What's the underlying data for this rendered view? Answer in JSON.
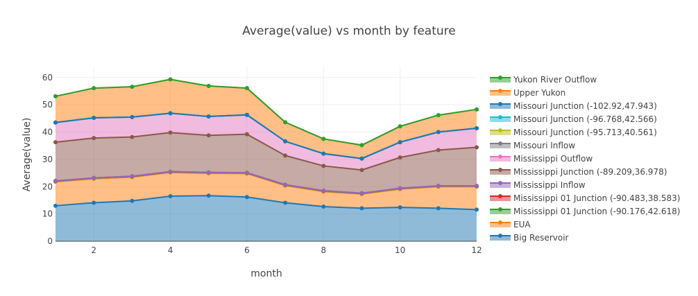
{
  "chart_data": {
    "type": "area",
    "title": "Average(value) vs month by feature",
    "xlabel": "month",
    "ylabel": "Average(value)",
    "x": [
      1,
      2,
      3,
      4,
      5,
      6,
      7,
      8,
      9,
      10,
      11,
      12
    ],
    "xticks": [
      "2",
      "4",
      "6",
      "8",
      "10",
      "12"
    ],
    "yticks": [
      "0",
      "10",
      "20",
      "30",
      "40",
      "50",
      "60"
    ],
    "xlim": [
      1,
      12
    ],
    "ylim": [
      0,
      64
    ],
    "stacked": true,
    "grid": true,
    "legend_position": "right",
    "series": [
      {
        "name": "Big Reservoir",
        "color": "#1f77b4",
        "values": [
          13.0,
          14.1,
          14.8,
          16.5,
          16.7,
          16.2,
          14.1,
          12.7,
          12.1,
          12.4,
          12.1,
          11.6
        ]
      },
      {
        "name": "EUA",
        "color": "#ff7f0e",
        "values": [
          8.8,
          8.8,
          8.7,
          8.7,
          8.2,
          8.6,
          6.3,
          5.5,
          5.2,
          6.7,
          7.9,
          8.4
        ]
      },
      {
        "name": "Mississippi 01 Junction (-90.176,42.618)",
        "color": "#2ca02c",
        "values": [
          0.2,
          0.2,
          0.2,
          0.2,
          0.2,
          0.2,
          0.2,
          0.2,
          0.2,
          0.2,
          0.2,
          0.2
        ]
      },
      {
        "name": "Mississippi 01 Junction (-90.483,38.583)",
        "color": "#d62728",
        "values": [
          0.1,
          0.1,
          0.1,
          0.1,
          0.1,
          0.1,
          0.1,
          0.1,
          0.1,
          0.1,
          0.1,
          0.1
        ]
      },
      {
        "name": "Mississippi Inflow",
        "color": "#9467bd",
        "values": [
          0.0,
          0.0,
          0.0,
          0.0,
          0.0,
          0.0,
          0.0,
          0.0,
          0.0,
          0.0,
          0.0,
          0.0
        ]
      },
      {
        "name": "Mississippi Junction (-89.209,36.978)",
        "color": "#8c564b",
        "values": [
          14.2,
          14.6,
          14.4,
          14.3,
          13.6,
          14.1,
          10.7,
          9.1,
          8.5,
          11.3,
          13.1,
          14.1
        ]
      },
      {
        "name": "Mississippi Outflow",
        "color": "#e377c2",
        "values": [
          7.2,
          7.4,
          7.3,
          7.1,
          6.9,
          7.1,
          5.2,
          4.5,
          4.2,
          5.6,
          6.6,
          7.0
        ]
      },
      {
        "name": "Missouri Inflow",
        "color": "#7f7f7f",
        "values": [
          0.0,
          0.0,
          0.0,
          0.0,
          0.0,
          0.0,
          0.0,
          0.0,
          0.0,
          0.0,
          0.0,
          0.0
        ]
      },
      {
        "name": "Missouri Junction (-95.713,40.561)",
        "color": "#bcbd22",
        "values": [
          0.0,
          0.0,
          0.0,
          0.0,
          0.0,
          0.0,
          0.0,
          0.0,
          0.0,
          0.0,
          0.0,
          0.0
        ]
      },
      {
        "name": "Missouri Junction (-96.768,42.566)",
        "color": "#17becf",
        "values": [
          0.0,
          0.0,
          0.0,
          0.0,
          0.0,
          0.0,
          0.0,
          0.0,
          0.0,
          0.0,
          0.0,
          0.0
        ]
      },
      {
        "name": "Missouri Junction (-102.92,47.943)",
        "color": "#1f77b4",
        "values": [
          0.0,
          0.0,
          0.0,
          0.0,
          0.0,
          0.0,
          0.0,
          0.0,
          0.0,
          0.0,
          0.0,
          0.0
        ]
      },
      {
        "name": "Upper Yukon",
        "color": "#ff7f0e",
        "values": [
          9.6,
          10.9,
          11.1,
          12.4,
          11.2,
          9.8,
          7.0,
          5.4,
          4.9,
          5.8,
          6.2,
          6.9
        ]
      },
      {
        "name": "Yukon River Outflow",
        "color": "#2ca02c",
        "values": [
          0.0,
          0.0,
          0.0,
          0.0,
          0.0,
          0.0,
          0.0,
          0.0,
          0.0,
          0.0,
          0.0,
          0.0
        ]
      }
    ]
  }
}
